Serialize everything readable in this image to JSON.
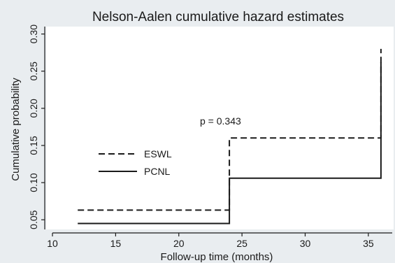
{
  "chart_data": {
    "type": "line",
    "title": "Nelson-Aalen cumulative hazard estimates",
    "xlabel": "Follow-up time (months)",
    "ylabel": "Cumulative probability",
    "xlim": [
      9.5,
      37
    ],
    "ylim": [
      0.037,
      0.31
    ],
    "xticks": [
      10,
      15,
      20,
      25,
      30,
      35
    ],
    "yticks": [
      0.05,
      0.1,
      0.15,
      0.2,
      0.25,
      0.3
    ],
    "xtick_labels": [
      "10",
      "15",
      "20",
      "25",
      "30",
      "35"
    ],
    "ytick_labels": [
      "0.05",
      "0.10",
      "0.15",
      "0.20",
      "0.25",
      "0.30"
    ],
    "step": true,
    "grid": false,
    "legend_position": "middle-left",
    "series": [
      {
        "name": "ESWL",
        "style": "dashed",
        "color": "#1a1a1a",
        "x": [
          12,
          24,
          24,
          36,
          36
        ],
        "y": [
          0.063,
          0.063,
          0.16,
          0.16,
          0.28
        ]
      },
      {
        "name": "PCNL",
        "style": "solid",
        "color": "#1a1a1a",
        "x": [
          12,
          24,
          24,
          36,
          36
        ],
        "y": [
          0.045,
          0.045,
          0.106,
          0.106,
          0.262
        ]
      }
    ],
    "annotations": [
      {
        "text": "p = 0.343",
        "x": 23.3,
        "y": 0.183
      }
    ]
  },
  "colors": {
    "background": "#e9edf0",
    "plot_area": "#ffffff",
    "ink": "#1a1a1a"
  }
}
